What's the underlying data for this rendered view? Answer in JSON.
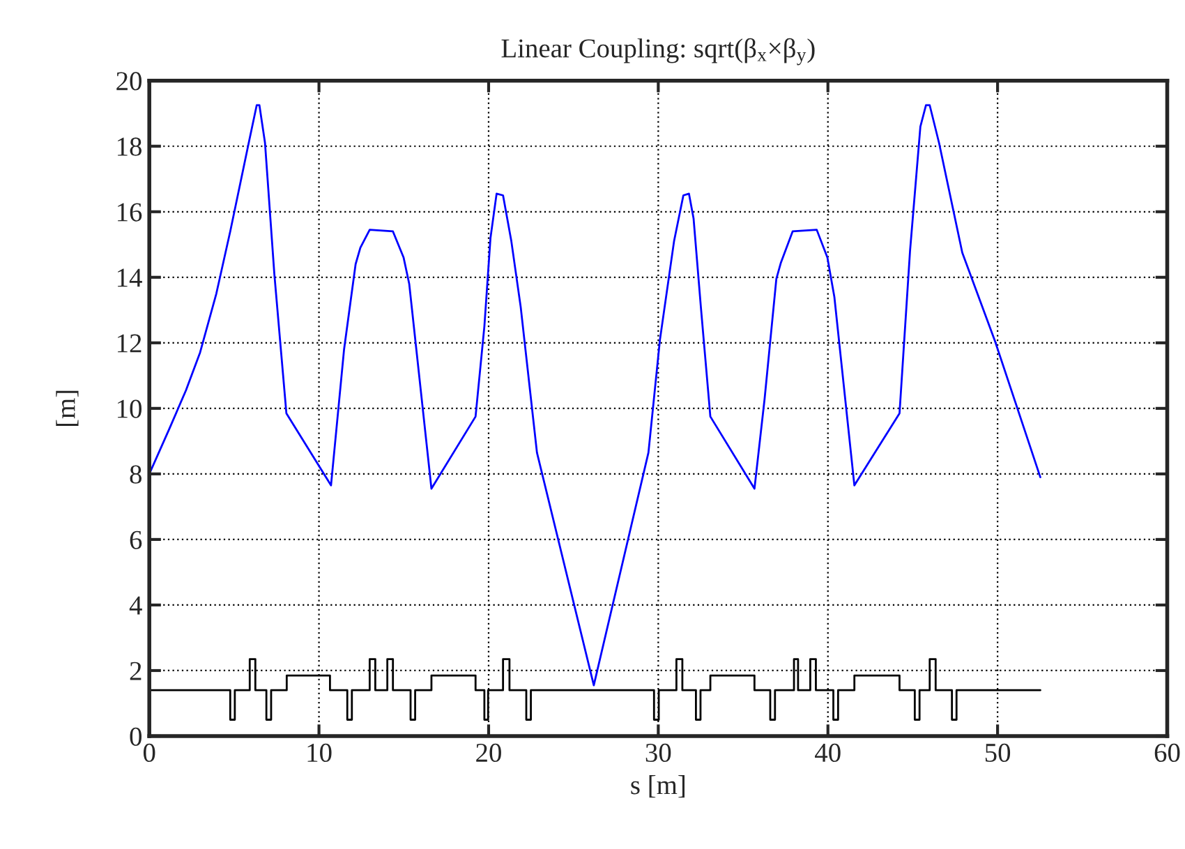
{
  "chart_data": {
    "type": "line",
    "title": "Linear Coupling: sqrt(β$_{x}$×β$_{y}$)",
    "xlabel": "s [m]",
    "ylabel": "[m]",
    "xlim": [
      0,
      60
    ],
    "xticks": [
      0,
      10,
      20,
      30,
      40,
      50,
      60
    ],
    "ylim": [
      0,
      20
    ],
    "yticks": [
      0,
      2,
      4,
      6,
      8,
      10,
      12,
      14,
      16,
      18,
      20
    ],
    "grid": true,
    "line_style": "solid",
    "marker": "none",
    "series": [
      {
        "color": "#0000ff",
        "x": [
          0,
          1.2,
          2.16,
          2.99,
          3.95,
          4.77,
          5.86,
          6.33,
          6.49,
          6.82,
          7.37,
          8.08,
          10.71,
          11.48,
          12.16,
          12.44,
          12.99,
          14.36,
          14.99,
          15.32,
          16.63,
          19.23,
          19.75,
          20.11,
          20.47,
          20.85,
          21.34,
          21.89,
          22.85,
          26.2,
          29.42,
          30.1,
          30.93,
          31.48,
          31.81,
          32.08,
          32.51,
          33.07,
          35.67,
          36.27,
          36.96,
          37.23,
          37.92,
          39.34,
          39.97,
          40.38,
          41.56,
          44.22,
          44.84,
          45.45,
          45.78,
          46.0,
          46.55,
          47.92,
          49.85,
          52.52
        ],
        "values": [
          8.0,
          9.4,
          10.55,
          11.7,
          13.5,
          15.4,
          18.1,
          19.25,
          19.25,
          18.1,
          14.1,
          9.85,
          7.65,
          11.8,
          14.4,
          14.9,
          15.45,
          15.4,
          14.6,
          13.8,
          7.55,
          9.75,
          12.5,
          15.2,
          16.55,
          16.5,
          15.1,
          13.1,
          8.65,
          1.55,
          8.65,
          12.1,
          15.1,
          16.5,
          16.55,
          15.8,
          13.1,
          9.75,
          7.55,
          10.3,
          13.95,
          14.45,
          15.4,
          15.45,
          14.6,
          13.4,
          7.65,
          9.85,
          14.8,
          18.6,
          19.25,
          19.25,
          18.1,
          14.75,
          12.05,
          7.9
        ]
      },
      {
        "type": "step",
        "color": "#000000",
        "x": [
          0,
          4.77,
          5.04,
          5.92,
          6.25,
          6.9,
          7.18,
          8.1,
          10.65,
          11.67,
          11.94,
          12.99,
          13.32,
          14.03,
          14.36,
          15.4,
          15.67,
          16.63,
          19.23,
          19.75,
          19.97,
          20.85,
          21.23,
          22.22,
          22.49,
          29.75,
          30.03,
          31.07,
          31.42,
          32.22,
          32.49,
          33.07,
          35.67,
          36.6,
          36.88,
          38.0,
          38.24,
          38.96,
          39.29,
          40.32,
          40.6,
          41.56,
          44.22,
          45.12,
          45.4,
          46.0,
          46.35,
          47.31,
          47.58,
          52.52
        ],
        "values": [
          1.4,
          0.5,
          1.4,
          2.35,
          1.4,
          0.5,
          1.4,
          1.85,
          1.4,
          0.5,
          1.4,
          2.35,
          1.4,
          2.35,
          1.4,
          0.5,
          1.4,
          1.85,
          1.4,
          0.5,
          1.4,
          2.35,
          1.4,
          0.5,
          1.4,
          0.5,
          1.4,
          2.35,
          1.4,
          0.5,
          1.4,
          1.85,
          1.4,
          0.5,
          1.4,
          2.35,
          1.4,
          2.35,
          1.4,
          0.5,
          1.4,
          1.85,
          1.4,
          0.5,
          1.4,
          2.35,
          1.4,
          0.5,
          1.4,
          1.4
        ]
      }
    ]
  }
}
